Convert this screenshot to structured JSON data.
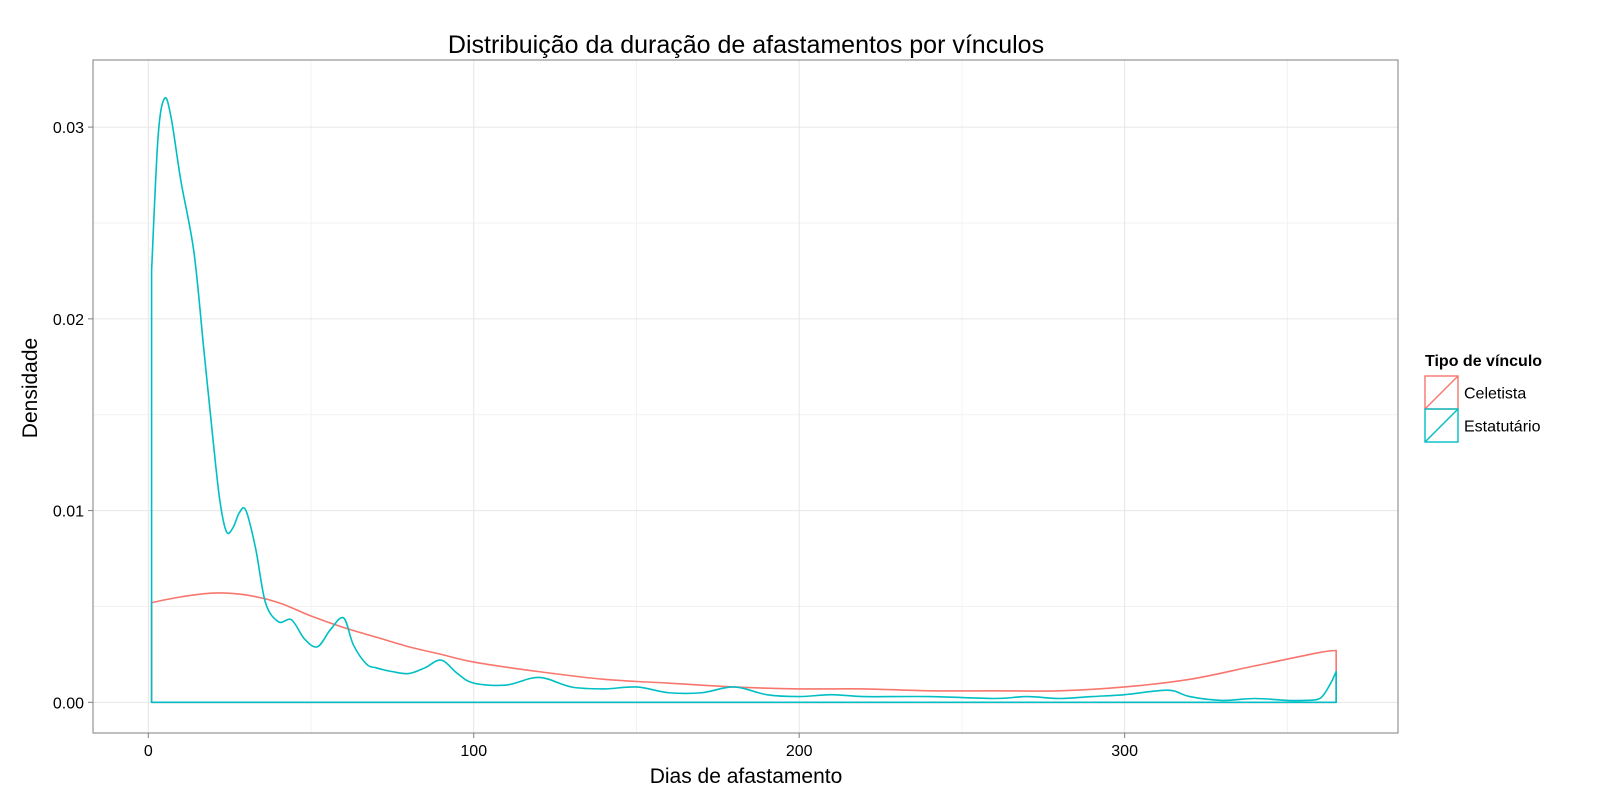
{
  "chart_data": {
    "type": "area",
    "title": "Distribuição da duração de afastamentos por vínculos",
    "xlabel": "Dias de afastamento",
    "ylabel": "Densidade",
    "xlim": [
      -17,
      384
    ],
    "ylim": [
      -0.0016,
      0.0335
    ],
    "x_ticks": [
      0,
      100,
      200,
      300
    ],
    "x_tick_labels": [
      "0",
      "100",
      "200",
      "300"
    ],
    "y_ticks": [
      0,
      0.01,
      0.02,
      0.03
    ],
    "y_tick_labels": [
      "0.00",
      "0.01",
      "0.02",
      "0.03"
    ],
    "grid": true,
    "legend": {
      "title": "Tipo de vínculo",
      "position": "right"
    },
    "series": [
      {
        "name": "Celetista",
        "color": "#F8766D",
        "x": [
          1,
          10,
          20,
          30,
          40,
          50,
          60,
          70,
          80,
          90,
          100,
          120,
          140,
          160,
          180,
          200,
          220,
          240,
          260,
          280,
          300,
          320,
          340,
          360,
          365
        ],
        "y": [
          0.0052,
          0.0055,
          0.0057,
          0.0056,
          0.0052,
          0.0045,
          0.0039,
          0.0034,
          0.0029,
          0.0025,
          0.0021,
          0.0016,
          0.0012,
          0.001,
          0.0008,
          0.0007,
          0.0007,
          0.0006,
          0.0006,
          0.0006,
          0.0008,
          0.0012,
          0.0019,
          0.0026,
          0.0027
        ]
      },
      {
        "name": "Estatutário",
        "color": "#00BFC4",
        "x": [
          1,
          3,
          5,
          7,
          10,
          14,
          17,
          20,
          22,
          24,
          26,
          28,
          30,
          33,
          36,
          40,
          44,
          48,
          52,
          56,
          60,
          63,
          67,
          70,
          75,
          80,
          85,
          90,
          95,
          100,
          110,
          120,
          130,
          140,
          150,
          160,
          170,
          180,
          190,
          200,
          210,
          220,
          240,
          260,
          270,
          280,
          290,
          300,
          310,
          315,
          320,
          330,
          340,
          350,
          355,
          360,
          363,
          365
        ],
        "y": [
          0.0225,
          0.0295,
          0.0315,
          0.0305,
          0.0272,
          0.0235,
          0.0185,
          0.0135,
          0.0105,
          0.0089,
          0.0091,
          0.0099,
          0.01,
          0.008,
          0.0052,
          0.0042,
          0.0043,
          0.0033,
          0.0029,
          0.0038,
          0.0044,
          0.003,
          0.002,
          0.0018,
          0.0016,
          0.0015,
          0.0018,
          0.0022,
          0.0015,
          0.001,
          0.0009,
          0.0013,
          0.0008,
          0.0007,
          0.0008,
          0.0005,
          0.0005,
          0.0008,
          0.0004,
          0.0003,
          0.0004,
          0.0003,
          0.0003,
          0.0002,
          0.0003,
          0.0002,
          0.0003,
          0.0004,
          0.0006,
          0.0006,
          0.0003,
          0.0001,
          0.0002,
          0.0001,
          0.0001,
          0.0002,
          0.0009,
          0.0016
        ]
      }
    ]
  }
}
